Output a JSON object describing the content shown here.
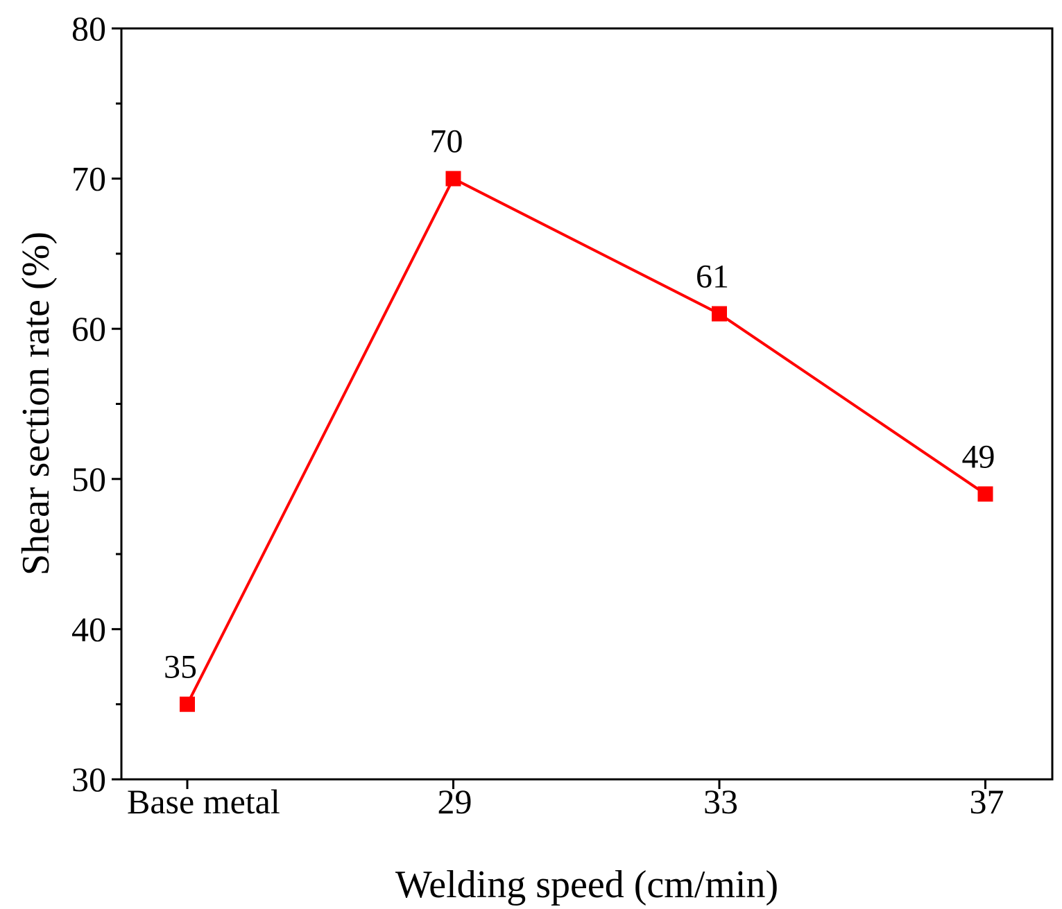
{
  "chart_data": {
    "type": "line",
    "categories": [
      "Base metal",
      "29",
      "33",
      "37"
    ],
    "series": [
      {
        "values": [
          35,
          70,
          61,
          49
        ]
      }
    ],
    "data_labels": [
      "35",
      "70",
      "61",
      "49"
    ],
    "xlabel": "Welding speed (cm/min)",
    "ylabel": "Shear section rate (%)",
    "ylim": [
      30,
      80
    ],
    "yticks": [
      30,
      40,
      50,
      60,
      70,
      80
    ],
    "ytick_labels": [
      "30",
      "40",
      "50",
      "60",
      "70",
      "80"
    ],
    "y_minor_step": 5,
    "grid": false,
    "legend": "none",
    "marker": "square",
    "color": "#ff0000"
  }
}
